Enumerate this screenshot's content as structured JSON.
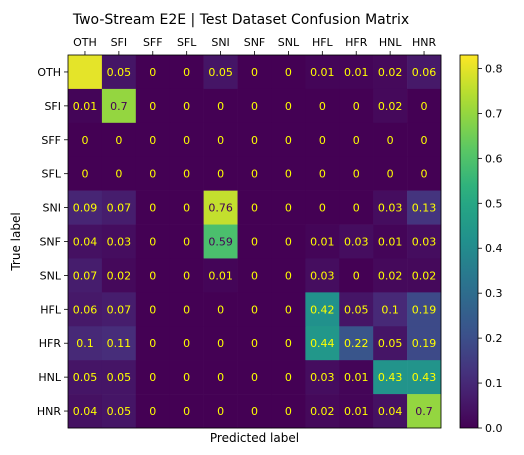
{
  "chart_data": {
    "type": "heatmap",
    "title": "Two-Stream E2E | Test Dataset Confusion Matrix",
    "xlabel": "Predicted label",
    "ylabel": "True label",
    "x_categories": [
      "OTH",
      "SFI",
      "SFF",
      "SFL",
      "SNI",
      "SNF",
      "SNL",
      "HFL",
      "HFR",
      "HNL",
      "HNR"
    ],
    "y_categories": [
      "OTH",
      "SFI",
      "SFF",
      "SFL",
      "SNI",
      "SNF",
      "SNL",
      "HFL",
      "HFR",
      "HNL",
      "HNR"
    ],
    "values": [
      [
        0.8,
        0.05,
        0,
        0,
        0.05,
        0,
        0,
        0.01,
        0.01,
        0.02,
        0.06
      ],
      [
        0.01,
        0.7,
        0,
        0,
        0,
        0,
        0,
        0,
        0,
        0.02,
        0
      ],
      [
        0,
        0,
        0,
        0,
        0,
        0,
        0,
        0,
        0,
        0,
        0
      ],
      [
        0,
        0,
        0,
        0,
        0,
        0,
        0,
        0,
        0,
        0,
        0
      ],
      [
        0.09,
        0.07,
        0,
        0,
        0.76,
        0,
        0,
        0,
        0,
        0.03,
        0.13
      ],
      [
        0.04,
        0.03,
        0,
        0,
        0.59,
        0,
        0,
        0.01,
        0.03,
        0.01,
        0.03
      ],
      [
        0.07,
        0.02,
        0,
        0,
        0.01,
        0,
        0,
        0.03,
        0,
        0.02,
        0.02
      ],
      [
        0.06,
        0.07,
        0,
        0,
        0,
        0,
        0,
        0.42,
        0.05,
        0.1,
        0.19
      ],
      [
        0.1,
        0.11,
        0,
        0,
        0,
        0,
        0,
        0.44,
        0.22,
        0.05,
        0.19
      ],
      [
        0.05,
        0.05,
        0,
        0,
        0,
        0,
        0,
        0.03,
        0.01,
        0.43,
        0.43
      ],
      [
        0.04,
        0.05,
        0,
        0,
        0,
        0,
        0,
        0.02,
        0.01,
        0.04,
        0.7
      ]
    ],
    "labels": [
      [
        "",
        "0.05",
        "0",
        "0",
        "0.05",
        "0",
        "0",
        "0.01",
        "0.01",
        "0.02",
        "0.06"
      ],
      [
        "0.01",
        "0.7",
        "0",
        "0",
        "0",
        "0",
        "0",
        "0",
        "0",
        "0.02",
        "0"
      ],
      [
        "0",
        "0",
        "0",
        "0",
        "0",
        "0",
        "0",
        "0",
        "0",
        "0",
        "0"
      ],
      [
        "0",
        "0",
        "0",
        "0",
        "0",
        "0",
        "0",
        "0",
        "0",
        "0",
        "0"
      ],
      [
        "0.09",
        "0.07",
        "0",
        "0",
        "0.76",
        "0",
        "0",
        "0",
        "0",
        "0.03",
        "0.13"
      ],
      [
        "0.04",
        "0.03",
        "0",
        "0",
        "0.59",
        "0",
        "0",
        "0.01",
        "0.03",
        "0.01",
        "0.03"
      ],
      [
        "0.07",
        "0.02",
        "0",
        "0",
        "0.01",
        "0",
        "0",
        "0.03",
        "0",
        "0.02",
        "0.02"
      ],
      [
        "0.06",
        "0.07",
        "0",
        "0",
        "0",
        "0",
        "0",
        "0.42",
        "0.05",
        "0.1",
        "0.19"
      ],
      [
        "0.1",
        "0.11",
        "0",
        "0",
        "0",
        "0",
        "0",
        "0.44",
        "0.22",
        "0.05",
        "0.19"
      ],
      [
        "0.05",
        "0.05",
        "0",
        "0",
        "0",
        "0",
        "0",
        "0.03",
        "0.01",
        "0.43",
        "0.43"
      ],
      [
        "0.04",
        "0.05",
        "0",
        "0",
        "0",
        "0",
        "0",
        "0.02",
        "0.01",
        "0.04",
        "0.7"
      ]
    ],
    "colorscale": "viridis",
    "colorbar": {
      "range": [
        0,
        0.83
      ],
      "ticks": [
        "0.0",
        "0.1",
        "0.2",
        "0.3",
        "0.4",
        "0.5",
        "0.6",
        "0.7",
        "0.8"
      ]
    },
    "label_color_light": "#ffff00",
    "label_color_dark": "#440154",
    "grid": false
  }
}
